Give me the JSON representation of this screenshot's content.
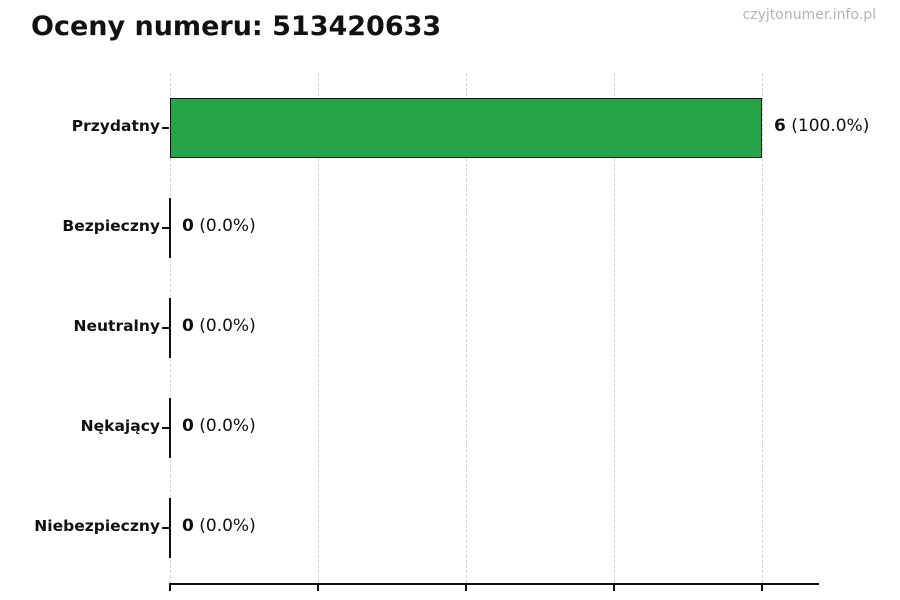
{
  "page": {
    "watermark": "czyjtonumer.info.pl"
  },
  "chart_data": {
    "type": "bar",
    "orientation": "horizontal",
    "title": "Oceny numeru: 513420633",
    "categories": [
      "Przydatny",
      "Bezpieczny",
      "Neutralny",
      "Nękający",
      "Niebezpieczny"
    ],
    "values": [
      6,
      0,
      0,
      0,
      0
    ],
    "percent_labels": [
      "100.0%",
      "0.0%",
      "0.0%",
      "0.0%",
      "0.0%"
    ],
    "value_label_texts": [
      "6 (100.0%)",
      "0 (0.0%)",
      "0 (0.0%)",
      "0 (0.0%)",
      "0 (0.0%)"
    ],
    "total_votes": 6,
    "xlim": [
      0,
      6.6
    ],
    "x_ticks": [
      0,
      1.5,
      3,
      4.5,
      6
    ],
    "x_tick_labels": [],
    "grid": "vertical-dashed",
    "legend_position": "none",
    "bar_color": "#26a44a",
    "bar_border_color": "#111111",
    "axis_color": "#111111",
    "gridline_color": "#d2d2d2",
    "watermark_color": "#b3b3b3"
  }
}
